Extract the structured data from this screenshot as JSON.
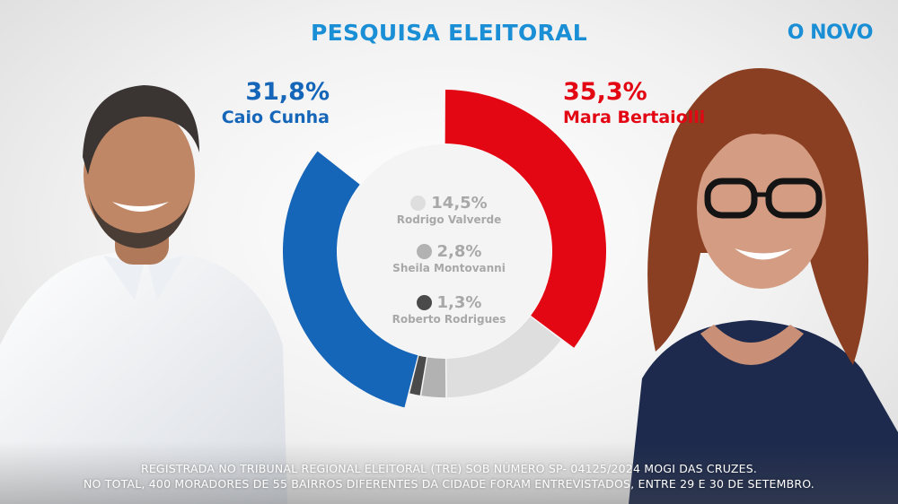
{
  "header": {
    "title": "PESQUISA ELEITORAL",
    "brand": "O NOVO"
  },
  "colors": {
    "caio": "#1565b8",
    "mara": "#e30613",
    "rodrigo": "#dedede",
    "sheila": "#b2b2b2",
    "roberto": "#4a4a4a",
    "title": "#1a8fd6"
  },
  "candidates": {
    "left": {
      "pct": "31,8%",
      "name": "Caio Cunha"
    },
    "right": {
      "pct": "35,3%",
      "name": "Mara Bertaiolli"
    },
    "minor": [
      {
        "pct": "14,5%",
        "name": "Rodrigo Valverde"
      },
      {
        "pct": "2,8%",
        "name": "Sheila Montovanni"
      },
      {
        "pct": "1,3%",
        "name": "Roberto Rodrigues"
      }
    ]
  },
  "chart_data": {
    "type": "pie",
    "title": "PESQUISA ELEITORAL",
    "unit": "%",
    "slices": [
      {
        "label": "Mara Bertaiolli",
        "value": 35.3,
        "color": "#e30613"
      },
      {
        "label": "Rodrigo Valverde",
        "value": 14.5,
        "color": "#dedede"
      },
      {
        "label": "Sheila Montovanni",
        "value": 2.8,
        "color": "#b2b2b2"
      },
      {
        "label": "Roberto Rodrigues",
        "value": 1.3,
        "color": "#4a4a4a"
      },
      {
        "label": "Caio Cunha",
        "value": 31.8,
        "color": "#1565b8"
      }
    ]
  },
  "footer": {
    "line1": "REGISTRADA NO TRIBUNAL REGIONAL ELEITORAL (TRE) SOB NÚMERO SP- 04125/2024 MOGI DAS CRUZES.",
    "line2": "NO TOTAL, 400 MORADORES DE 55 BAIRROS DIFERENTES DA CIDADE FORAM ENTREVISTADOS, ENTRE 29 E 30 DE SETEMBRO."
  }
}
